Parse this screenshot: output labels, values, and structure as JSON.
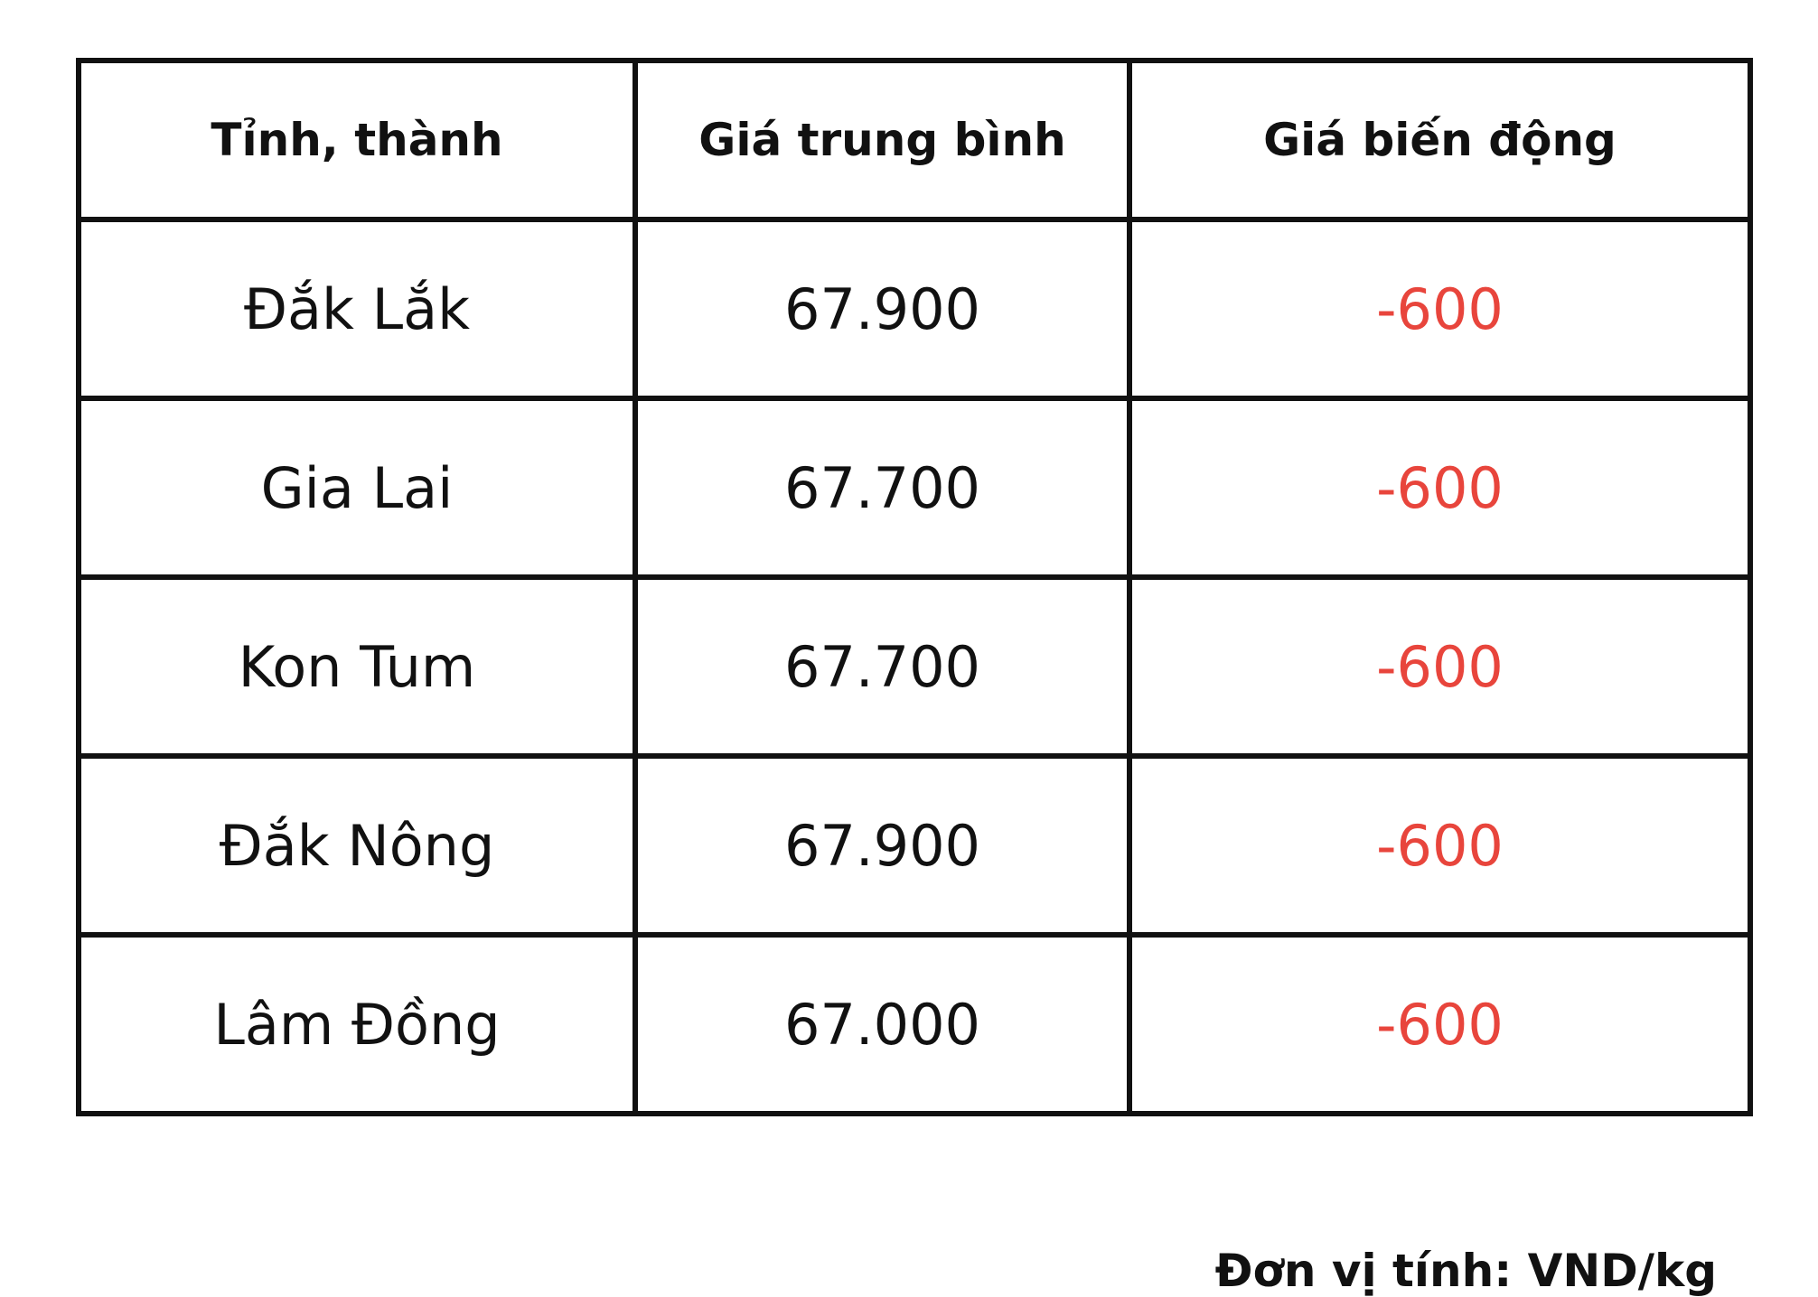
{
  "table": {
    "headers": [
      "Tỉnh, thành",
      "Giá trung bình",
      "Giá biến động"
    ],
    "rows": [
      [
        "Đắk Lắk",
        "67.900",
        "-600"
      ],
      [
        "Gia Lai",
        "67.700",
        "-600"
      ],
      [
        "Kon Tum",
        "67.700",
        "-600"
      ],
      [
        "Đắk Nông",
        "67.900",
        "-600"
      ],
      [
        "Lâm Đồng",
        "67.000",
        "-600"
      ]
    ]
  },
  "footer": {
    "unit_note": "Đơn vị tính: VND/kg"
  },
  "colors": {
    "change_negative": "#e8453c"
  }
}
